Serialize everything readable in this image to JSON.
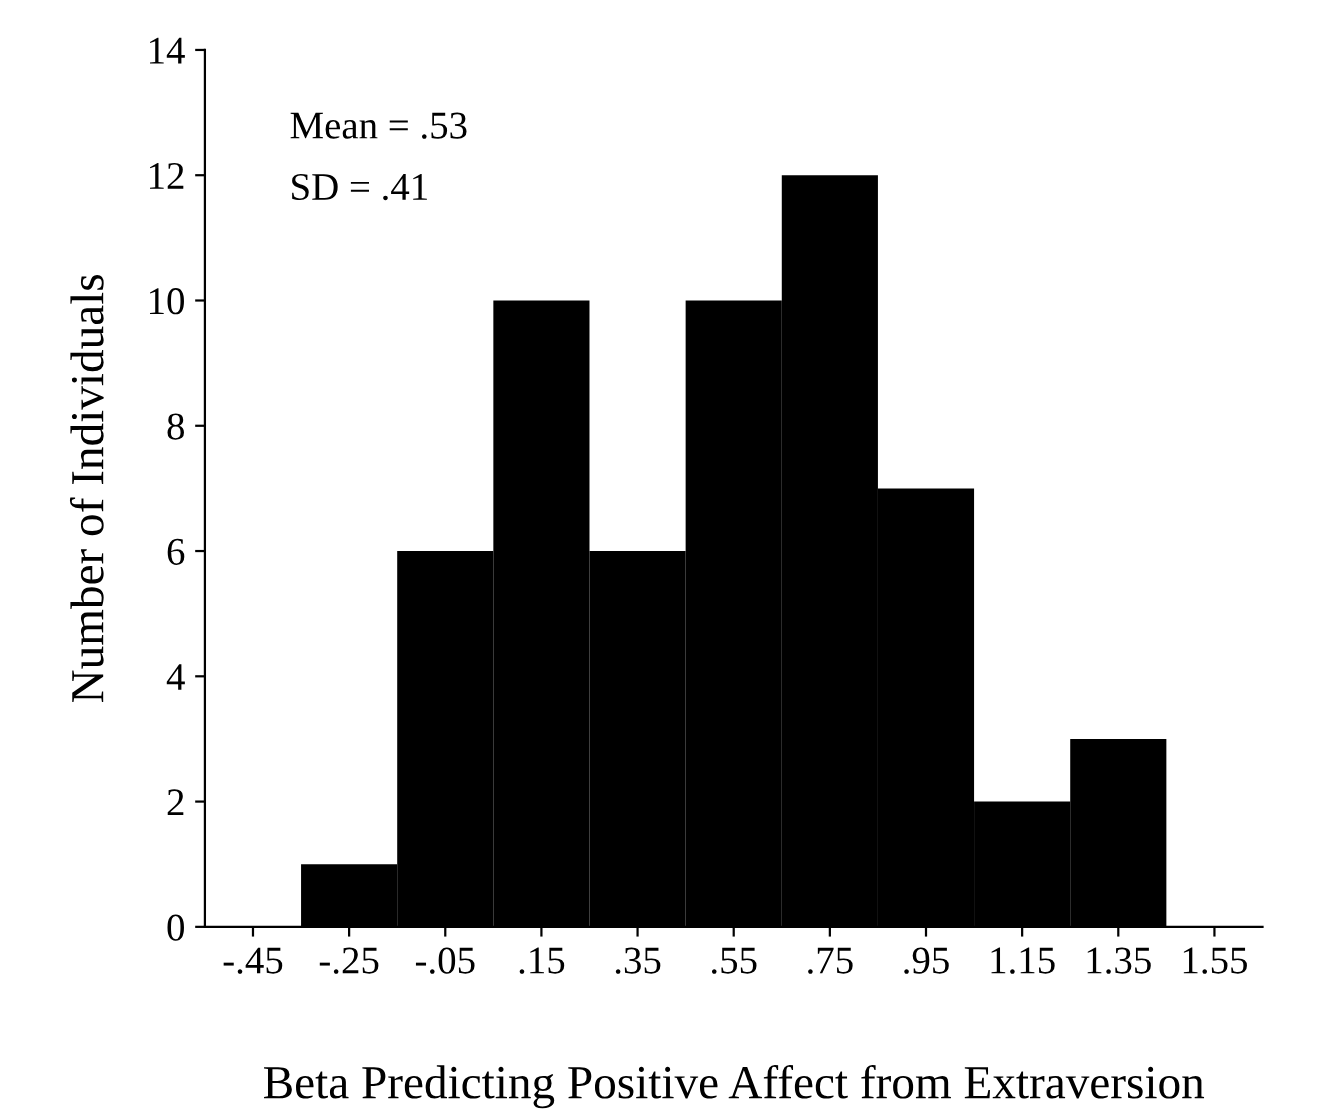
{
  "chart_data": {
    "type": "histogram",
    "xlabel": "Beta Predicting Positive Affect from Extraversion",
    "ylabel": "Number of Individuals",
    "bins": [
      -0.35,
      -0.15,
      0.05,
      0.25,
      0.45,
      0.65,
      0.85,
      1.05,
      1.25,
      1.45
    ],
    "values": [
      1,
      6,
      10,
      6,
      10,
      12,
      7,
      2,
      3
    ],
    "color": "#000000",
    "xlim": [
      -0.55,
      1.65
    ],
    "xticks": [
      {
        "value": -0.45,
        "label": "-.45"
      },
      {
        "value": -0.25,
        "label": "-.25"
      },
      {
        "value": -0.05,
        "label": "-.05"
      },
      {
        "value": 0.15,
        "label": ".15"
      },
      {
        "value": 0.35,
        "label": ".35"
      },
      {
        "value": 0.55,
        "label": ".55"
      },
      {
        "value": 0.75,
        "label": ".75"
      },
      {
        "value": 0.95,
        "label": ".95"
      },
      {
        "value": 1.15,
        "label": "1.15"
      },
      {
        "value": 1.35,
        "label": "1.35"
      },
      {
        "value": 1.55,
        "label": "1.55"
      }
    ],
    "ylim": [
      0,
      14
    ],
    "yticks": [
      0,
      2,
      4,
      6,
      8,
      10,
      12,
      14
    ],
    "annotations": [
      "Mean = .53",
      "SD = .41"
    ],
    "grid": false
  }
}
